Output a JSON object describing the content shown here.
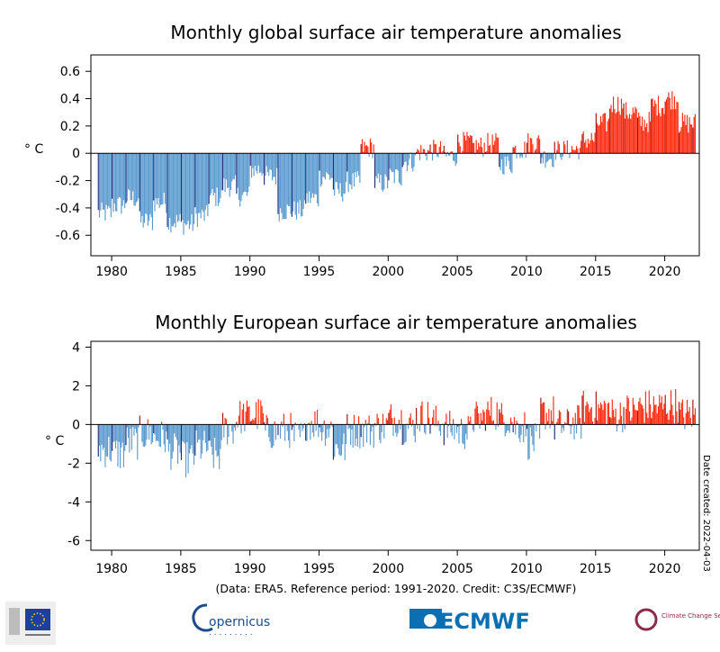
{
  "credit_line": "(Data: ERA5.  Reference period: 1991-2020.  Credit: C3S/ECMWF)",
  "side_note": "Date created: 2022-04-03",
  "logos": {
    "copernicus": "opernicus",
    "ecmwf": "ECMWF",
    "c3s": "Climate Change Service"
  },
  "colors": {
    "cold_light": "#5b9bd0",
    "cold_dark": "#1f2d7a",
    "warm_light": "#ff2a10",
    "warm_dark": "#a60f0a"
  },
  "chart_data": [
    {
      "type": "bar",
      "title": "Monthly global surface air temperature anomalies",
      "ylabel": "° C",
      "xlim": [
        1978.5,
        2022.5
      ],
      "ylim": [
        -0.75,
        0.72
      ],
      "x_ticks": [
        "1980",
        "1985",
        "1990",
        "1995",
        "2000",
        "2005",
        "2010",
        "2015",
        "2020"
      ],
      "y_ticks": [
        "-0.6",
        "-0.4",
        "-0.2",
        "0",
        "0.2",
        "0.4",
        "0.6"
      ],
      "y_tick_values": [
        -0.6,
        -0.4,
        -0.2,
        0,
        0.2,
        0.4,
        0.6
      ],
      "start": "1979-01",
      "annual_trend": [
        -0.44,
        -0.38,
        -0.33,
        -0.5,
        -0.36,
        -0.5,
        -0.52,
        -0.46,
        -0.32,
        -0.24,
        -0.31,
        -0.12,
        -0.17,
        -0.42,
        -0.42,
        -0.33,
        -0.17,
        -0.28,
        -0.21,
        0.04,
        -0.22,
        -0.17,
        -0.06,
        0.01,
        0.02,
        -0.02,
        0.08,
        0.05,
        0.07,
        -0.08,
        0.03,
        0.08,
        -0.03,
        0.02,
        0.03,
        0.1,
        0.22,
        0.36,
        0.3,
        0.23,
        0.35,
        0.4,
        0.22,
        0.22
      ],
      "annual_spread": 0.1
    },
    {
      "type": "bar",
      "title": "Monthly European surface air temperature anomalies",
      "ylabel": "° C",
      "xlim": [
        1978.5,
        2022.5
      ],
      "ylim": [
        -6.5,
        4.3
      ],
      "x_ticks": [
        "1980",
        "1985",
        "1990",
        "1995",
        "2000",
        "2005",
        "2010",
        "2015",
        "2020"
      ],
      "y_ticks": [
        "-6",
        "-4",
        "-2",
        "0",
        "2",
        "4"
      ],
      "y_tick_values": [
        -6,
        -4,
        -2,
        0,
        2,
        4
      ],
      "start": "1979-01",
      "annual_trend": [
        -1.3,
        -1.5,
        -0.9,
        -0.5,
        -0.7,
        -1.4,
        -1.8,
        -1.2,
        -1.6,
        -0.2,
        0.4,
        0.5,
        -0.4,
        -0.3,
        -0.7,
        0.1,
        -0.2,
        -1.2,
        -0.3,
        -0.3,
        -0.1,
        0.3,
        -0.1,
        0.4,
        0.1,
        -0.2,
        -0.4,
        0.3,
        0.6,
        0.3,
        -0.1,
        -0.9,
        0.6,
        -0.1,
        0.1,
        0.9,
        0.8,
        0.5,
        0.7,
        0.9,
        0.9,
        1.0,
        0.5,
        0.6
      ],
      "annual_spread": 1.2
    }
  ]
}
